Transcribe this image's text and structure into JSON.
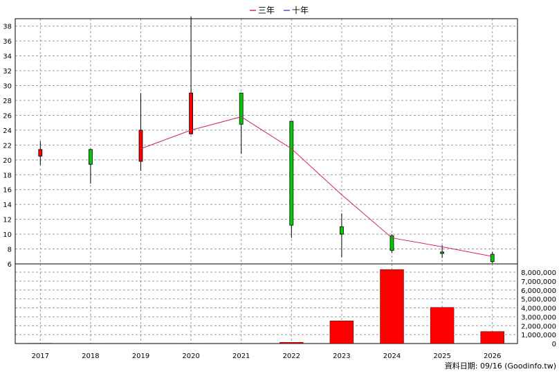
{
  "chart_data": {
    "type": "candlestick",
    "legend": [
      {
        "label": "三年",
        "color": "#d6206b"
      },
      {
        "label": "十年",
        "color": "#7a3cc8"
      }
    ],
    "categories": [
      "2017",
      "2018",
      "2019",
      "2020",
      "2021",
      "2022",
      "2023",
      "2024",
      "2025",
      "2026"
    ],
    "price_axis": {
      "min": 6,
      "max": 39,
      "ticks": [
        6,
        8,
        10,
        12,
        14,
        16,
        18,
        20,
        22,
        24,
        26,
        28,
        30,
        32,
        34,
        36,
        38
      ]
    },
    "volume_axis": {
      "min": 0,
      "max": 8000000,
      "ticks": [
        "0",
        "1,000,000",
        "2,000,000",
        "3,000,000",
        "4,000,000",
        "5,000,000",
        "6,000,000",
        "7,000,000",
        "8,000,000"
      ]
    },
    "candles": [
      {
        "year": "2017",
        "open": 20.5,
        "close": 21.4,
        "high": 22.5,
        "low": 19.3
      },
      {
        "year": "2018",
        "open": 21.4,
        "close": 19.4,
        "high": 21.5,
        "low": 16.8
      },
      {
        "year": "2019",
        "open": 19.8,
        "close": 24.0,
        "high": 29.0,
        "low": 18.5
      },
      {
        "year": "2020",
        "open": 23.5,
        "close": 29.0,
        "high": 39.3,
        "low": 23.4
      },
      {
        "year": "2021",
        "open": 29.0,
        "close": 24.8,
        "high": 29.0,
        "low": 20.8
      },
      {
        "year": "2022",
        "open": 25.2,
        "close": 11.2,
        "high": 25.2,
        "low": 9.5
      },
      {
        "year": "2023",
        "open": 11.0,
        "close": 10.0,
        "high": 12.8,
        "low": 6.9
      },
      {
        "year": "2024",
        "open": 9.8,
        "close": 7.8,
        "high": 10.0,
        "low": 7.5
      },
      {
        "year": "2025",
        "open": 7.6,
        "close": 7.4,
        "high": 8.5,
        "low": 6.8
      },
      {
        "year": "2026",
        "open": 7.3,
        "close": 6.3,
        "high": 7.6,
        "low": 6.1
      }
    ],
    "ma_line": {
      "name": "三年",
      "points": [
        {
          "x": "2019",
          "y": 21.5
        },
        {
          "x": "2020",
          "y": 24.0
        },
        {
          "x": "2021",
          "y": 25.8
        },
        {
          "x": "2022",
          "y": 21.5
        },
        {
          "x": "2023",
          "y": 15.3
        },
        {
          "x": "2024",
          "y": 9.5
        },
        {
          "x": "2025",
          "y": 8.3
        },
        {
          "x": "2026",
          "y": 7.0
        }
      ]
    },
    "volumes": [
      {
        "year": "2017",
        "value": 30000
      },
      {
        "year": "2018",
        "value": 25000
      },
      {
        "year": "2019",
        "value": 20000
      },
      {
        "year": "2020",
        "value": 25000
      },
      {
        "year": "2021",
        "value": 0
      },
      {
        "year": "2022",
        "value": 130000
      },
      {
        "year": "2023",
        "value": 2550000
      },
      {
        "year": "2024",
        "value": 8300000
      },
      {
        "year": "2025",
        "value": 4050000
      },
      {
        "year": "2026",
        "value": 1350000
      }
    ],
    "colors": {
      "up": "#ff0000",
      "down": "#00cc00",
      "ma": "#d6206b",
      "volume": "#ff0000",
      "grid": "#999999"
    },
    "grid": true
  },
  "footer": {
    "credit": "資料日期: 09/16  (Goodinfo.tw)"
  }
}
